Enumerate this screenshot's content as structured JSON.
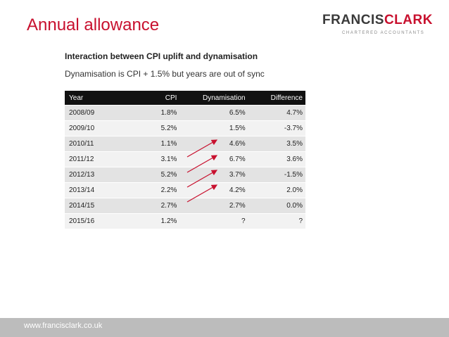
{
  "title": "Annual allowance",
  "logo": {
    "part1": "FRANCIS",
    "part2": "CLARK",
    "tagline": "CHARTERED ACCOUNTANTS"
  },
  "subtitle": "Interaction between CPI uplift and dynamisation",
  "note": "Dynamisation is CPI + 1.5% but years are out of sync",
  "table": {
    "headers": [
      "Year",
      "CPI",
      "Dynamisation",
      "Difference"
    ],
    "rows": [
      [
        "2008/09",
        "1.8%",
        "6.5%",
        "4.7%"
      ],
      [
        "2009/10",
        "5.2%",
        "1.5%",
        "-3.7%"
      ],
      [
        "2010/11",
        "1.1%",
        "4.6%",
        "3.5%"
      ],
      [
        "2011/12",
        "3.1%",
        "6.7%",
        "3.6%"
      ],
      [
        "2012/13",
        "5.2%",
        "3.7%",
        "-1.5%"
      ],
      [
        "2013/14",
        "2.2%",
        "4.2%",
        "2.0%"
      ],
      [
        "2014/15",
        "2.7%",
        "2.7%",
        "0.0%"
      ],
      [
        "2015/16",
        "1.2%",
        "?",
        "?"
      ]
    ]
  },
  "arrow_color": "#c8102e",
  "footer": {
    "url": "www.francisclark.co.uk"
  }
}
